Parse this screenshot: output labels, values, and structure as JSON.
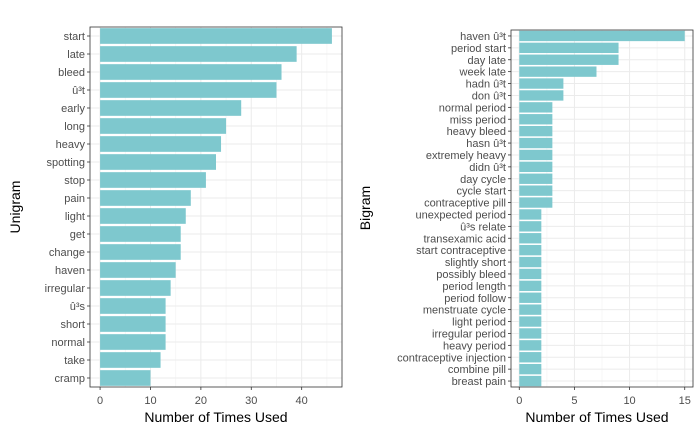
{
  "chart_data": [
    {
      "type": "bar",
      "orientation": "horizontal",
      "bar_color": "#7EC8CE",
      "xlabel": "Number of Times Used",
      "ylabel": "Unigram",
      "xlim": [
        -2,
        48
      ],
      "xticks": [
        0,
        10,
        20,
        30,
        40
      ],
      "categories": [
        "start",
        "late",
        "bleed",
        "û³t",
        "early",
        "long",
        "heavy",
        "spotting",
        "stop",
        "pain",
        "light",
        "get",
        "change",
        "haven",
        "irregular",
        "û³s",
        "short",
        "normal",
        "take",
        "cramp"
      ],
      "values": [
        46,
        39,
        36,
        35,
        28,
        25,
        24,
        23,
        21,
        18,
        17,
        16,
        16,
        15,
        14,
        13,
        13,
        13,
        12,
        10
      ]
    },
    {
      "type": "bar",
      "orientation": "horizontal",
      "bar_color": "#7EC8CE",
      "xlabel": "Number of Times Used",
      "ylabel": "Bigram",
      "xlim": [
        -0.75,
        15.75
      ],
      "xticks": [
        0,
        5,
        10,
        15
      ],
      "categories": [
        "haven û³t",
        "period start",
        "day late",
        "week late",
        "hadn û³t",
        "don û³t",
        "normal period",
        "miss period",
        "heavy bleed",
        "hasn û³t",
        "extremely heavy",
        "didn û³t",
        "day cycle",
        "cycle start",
        "contraceptive pill",
        "unexpected period",
        "û³s relate",
        "transexamic acid",
        "start contraceptive",
        "slightly short",
        "possibly bleed",
        "period length",
        "period follow",
        "menstruate cycle",
        "light period",
        "irregular period",
        "heavy period",
        "contraceptive injection",
        "combine pill",
        "breast pain"
      ],
      "values": [
        15,
        9,
        9,
        7,
        4,
        4,
        3,
        3,
        3,
        3,
        3,
        3,
        3,
        3,
        3,
        2,
        2,
        2,
        2,
        2,
        2,
        2,
        2,
        2,
        2,
        2,
        2,
        2,
        2,
        2
      ]
    }
  ]
}
